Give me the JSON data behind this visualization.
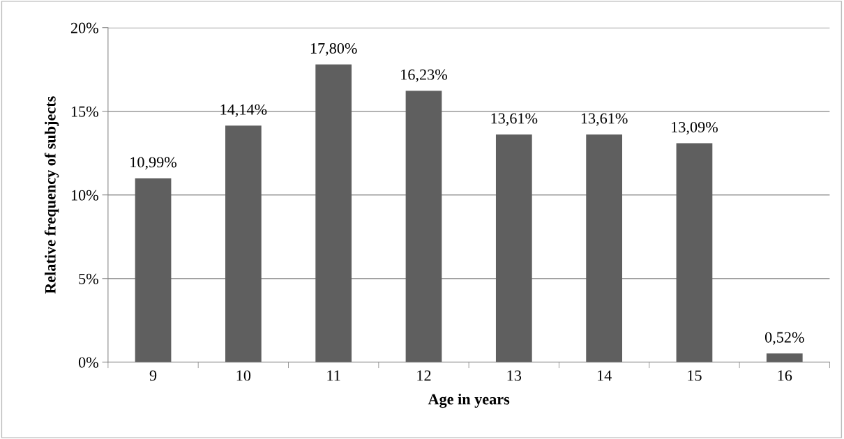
{
  "chart_data": {
    "type": "bar",
    "xlabel": "Age in years",
    "ylabel": "Relative frequency of subjects",
    "categories": [
      "9",
      "10",
      "11",
      "12",
      "13",
      "14",
      "15",
      "16"
    ],
    "values": [
      10.99,
      14.14,
      17.8,
      16.23,
      13.61,
      13.61,
      13.09,
      0.52
    ],
    "value_labels": [
      "10,99%",
      "14,14%",
      "17,80%",
      "16,23%",
      "13,61%",
      "13,61%",
      "13,09%",
      "0,52%"
    ],
    "color": "#5f5f5f",
    "ylim": [
      0,
      20
    ],
    "yticks": [
      {
        "value": 0,
        "label": "0%"
      },
      {
        "value": 5,
        "label": "5%"
      },
      {
        "value": 10,
        "label": "10%"
      },
      {
        "value": 15,
        "label": "15%"
      },
      {
        "value": 20,
        "label": "20%"
      }
    ],
    "grid": "y",
    "legend": false
  }
}
